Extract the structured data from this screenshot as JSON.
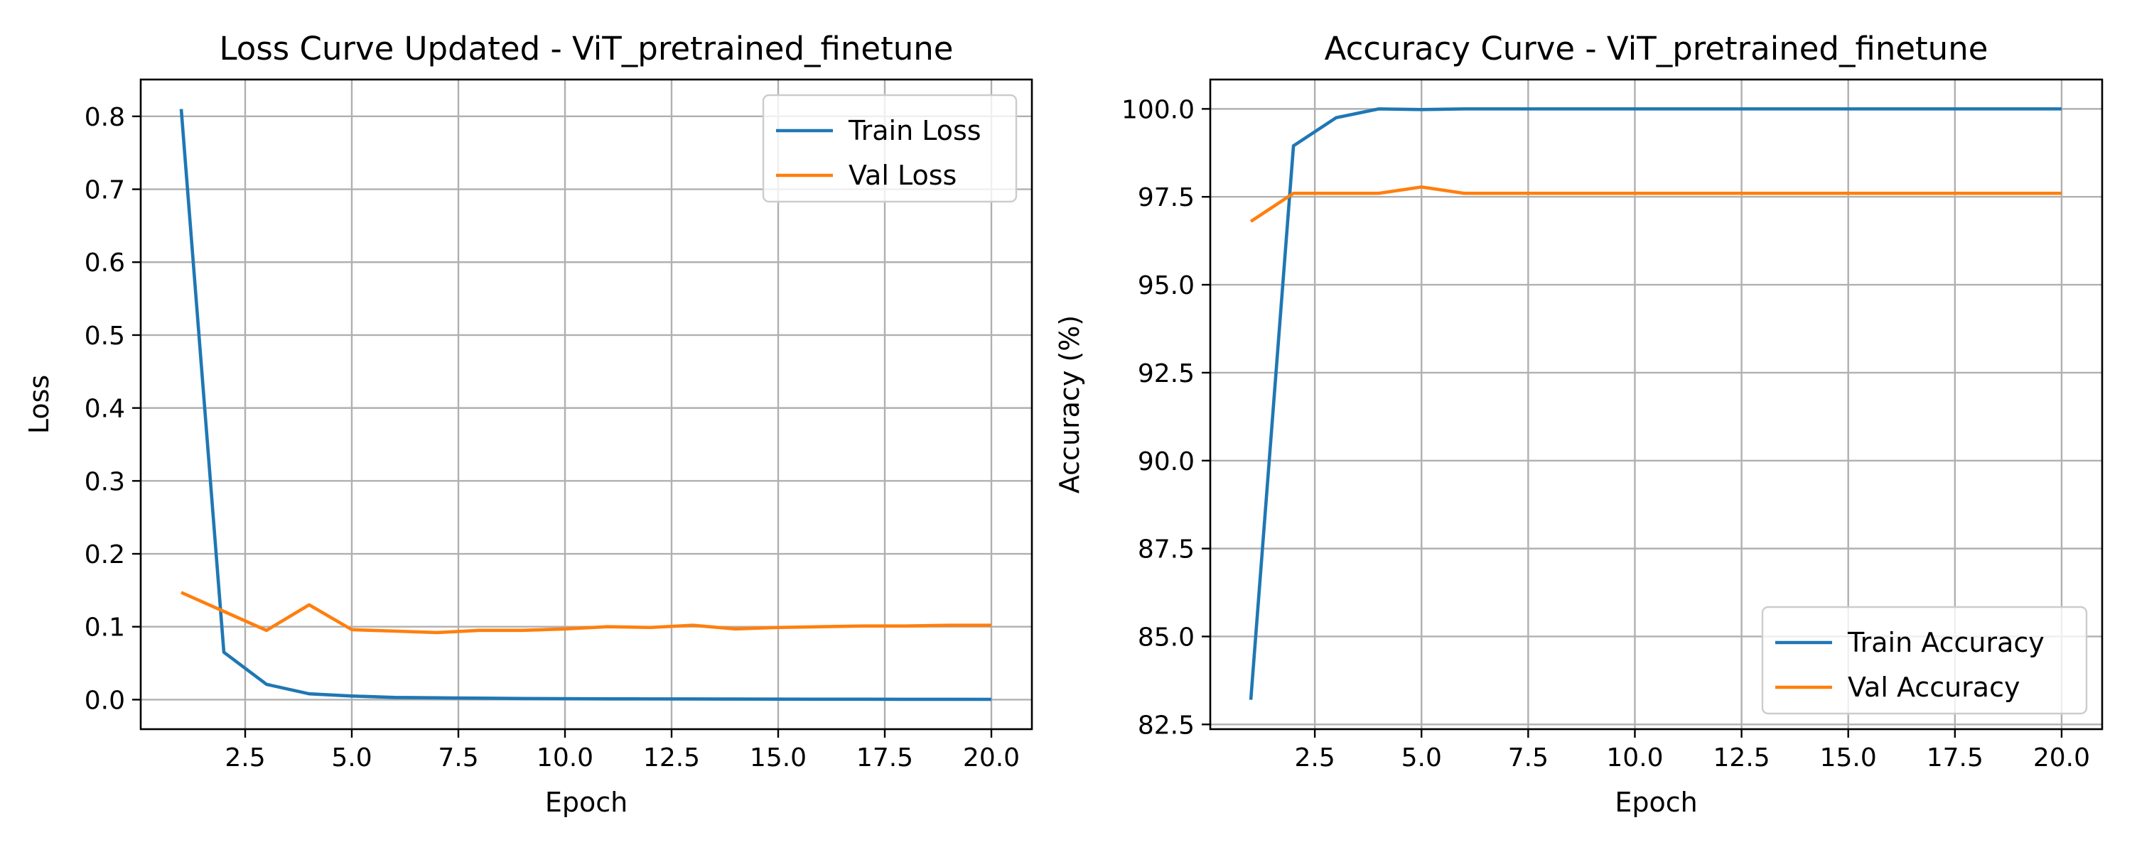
{
  "figure": {
    "background": "#ffffff"
  },
  "chart_data": [
    {
      "type": "line",
      "title": "Loss Curve Updated - ViT_pretrained_finetune",
      "xlabel": "Epoch",
      "ylabel": "Loss",
      "xlim": [
        0.05,
        20.95
      ],
      "ylim": [
        -0.0405,
        0.8505
      ],
      "xticks": [
        2.5,
        5.0,
        7.5,
        10.0,
        12.5,
        15.0,
        17.5,
        20.0
      ],
      "xtick_labels": [
        "2.5",
        "5.0",
        "7.5",
        "10.0",
        "12.5",
        "15.0",
        "17.5",
        "20.0"
      ],
      "yticks": [
        0.0,
        0.1,
        0.2,
        0.3,
        0.4,
        0.5,
        0.6,
        0.7,
        0.8
      ],
      "ytick_labels": [
        "0.0",
        "0.1",
        "0.2",
        "0.3",
        "0.4",
        "0.5",
        "0.6",
        "0.7",
        "0.8"
      ],
      "grid": true,
      "legend_position": "upper-right",
      "x": [
        1,
        2,
        3,
        4,
        5,
        6,
        7,
        8,
        9,
        10,
        11,
        12,
        13,
        14,
        15,
        16,
        17,
        18,
        19,
        20
      ],
      "series": [
        {
          "name": "Train Loss",
          "color": "#1f77b4",
          "values": [
            0.81,
            0.065,
            0.021,
            0.008,
            0.005,
            0.003,
            0.0025,
            0.002,
            0.0016,
            0.0013,
            0.0011,
            0.001,
            0.0009,
            0.0008,
            0.0007,
            0.0006,
            0.0006,
            0.0005,
            0.0005,
            0.0004
          ]
        },
        {
          "name": "Val Loss",
          "color": "#ff7f0e",
          "values": [
            0.147,
            0.121,
            0.095,
            0.13,
            0.096,
            0.094,
            0.092,
            0.095,
            0.095,
            0.097,
            0.1,
            0.099,
            0.102,
            0.097,
            0.099,
            0.1,
            0.101,
            0.101,
            0.102,
            0.102
          ]
        }
      ]
    },
    {
      "type": "line",
      "title": "Accuracy Curve - ViT_pretrained_finetune",
      "xlabel": "Epoch",
      "ylabel": "Accuracy (%)",
      "xlim": [
        0.05,
        20.95
      ],
      "ylim": [
        82.365,
        100.835
      ],
      "xticks": [
        2.5,
        5.0,
        7.5,
        10.0,
        12.5,
        15.0,
        17.5,
        20.0
      ],
      "xtick_labels": [
        "2.5",
        "5.0",
        "7.5",
        "10.0",
        "12.5",
        "15.0",
        "17.5",
        "20.0"
      ],
      "yticks": [
        82.5,
        85.0,
        87.5,
        90.0,
        92.5,
        95.0,
        97.5,
        100.0
      ],
      "ytick_labels": [
        "82.5",
        "85.0",
        "87.5",
        "90.0",
        "92.5",
        "95.0",
        "97.5",
        "100.0"
      ],
      "grid": true,
      "legend_position": "lower-right",
      "x": [
        1,
        2,
        3,
        4,
        5,
        6,
        7,
        8,
        9,
        10,
        11,
        12,
        13,
        14,
        15,
        16,
        17,
        18,
        19,
        20
      ],
      "series": [
        {
          "name": "Train Accuracy",
          "color": "#1f77b4",
          "values": [
            83.2,
            98.95,
            99.75,
            100.0,
            99.98,
            100.0,
            100.0,
            100.0,
            100.0,
            100.0,
            100.0,
            100.0,
            100.0,
            100.0,
            100.0,
            100.0,
            100.0,
            100.0,
            100.0,
            100.0
          ]
        },
        {
          "name": "Val Accuracy",
          "color": "#ff7f0e",
          "values": [
            96.8,
            97.6,
            97.6,
            97.6,
            97.78,
            97.6,
            97.6,
            97.6,
            97.6,
            97.6,
            97.6,
            97.6,
            97.6,
            97.6,
            97.6,
            97.6,
            97.6,
            97.6,
            97.6,
            97.6
          ]
        }
      ]
    }
  ]
}
